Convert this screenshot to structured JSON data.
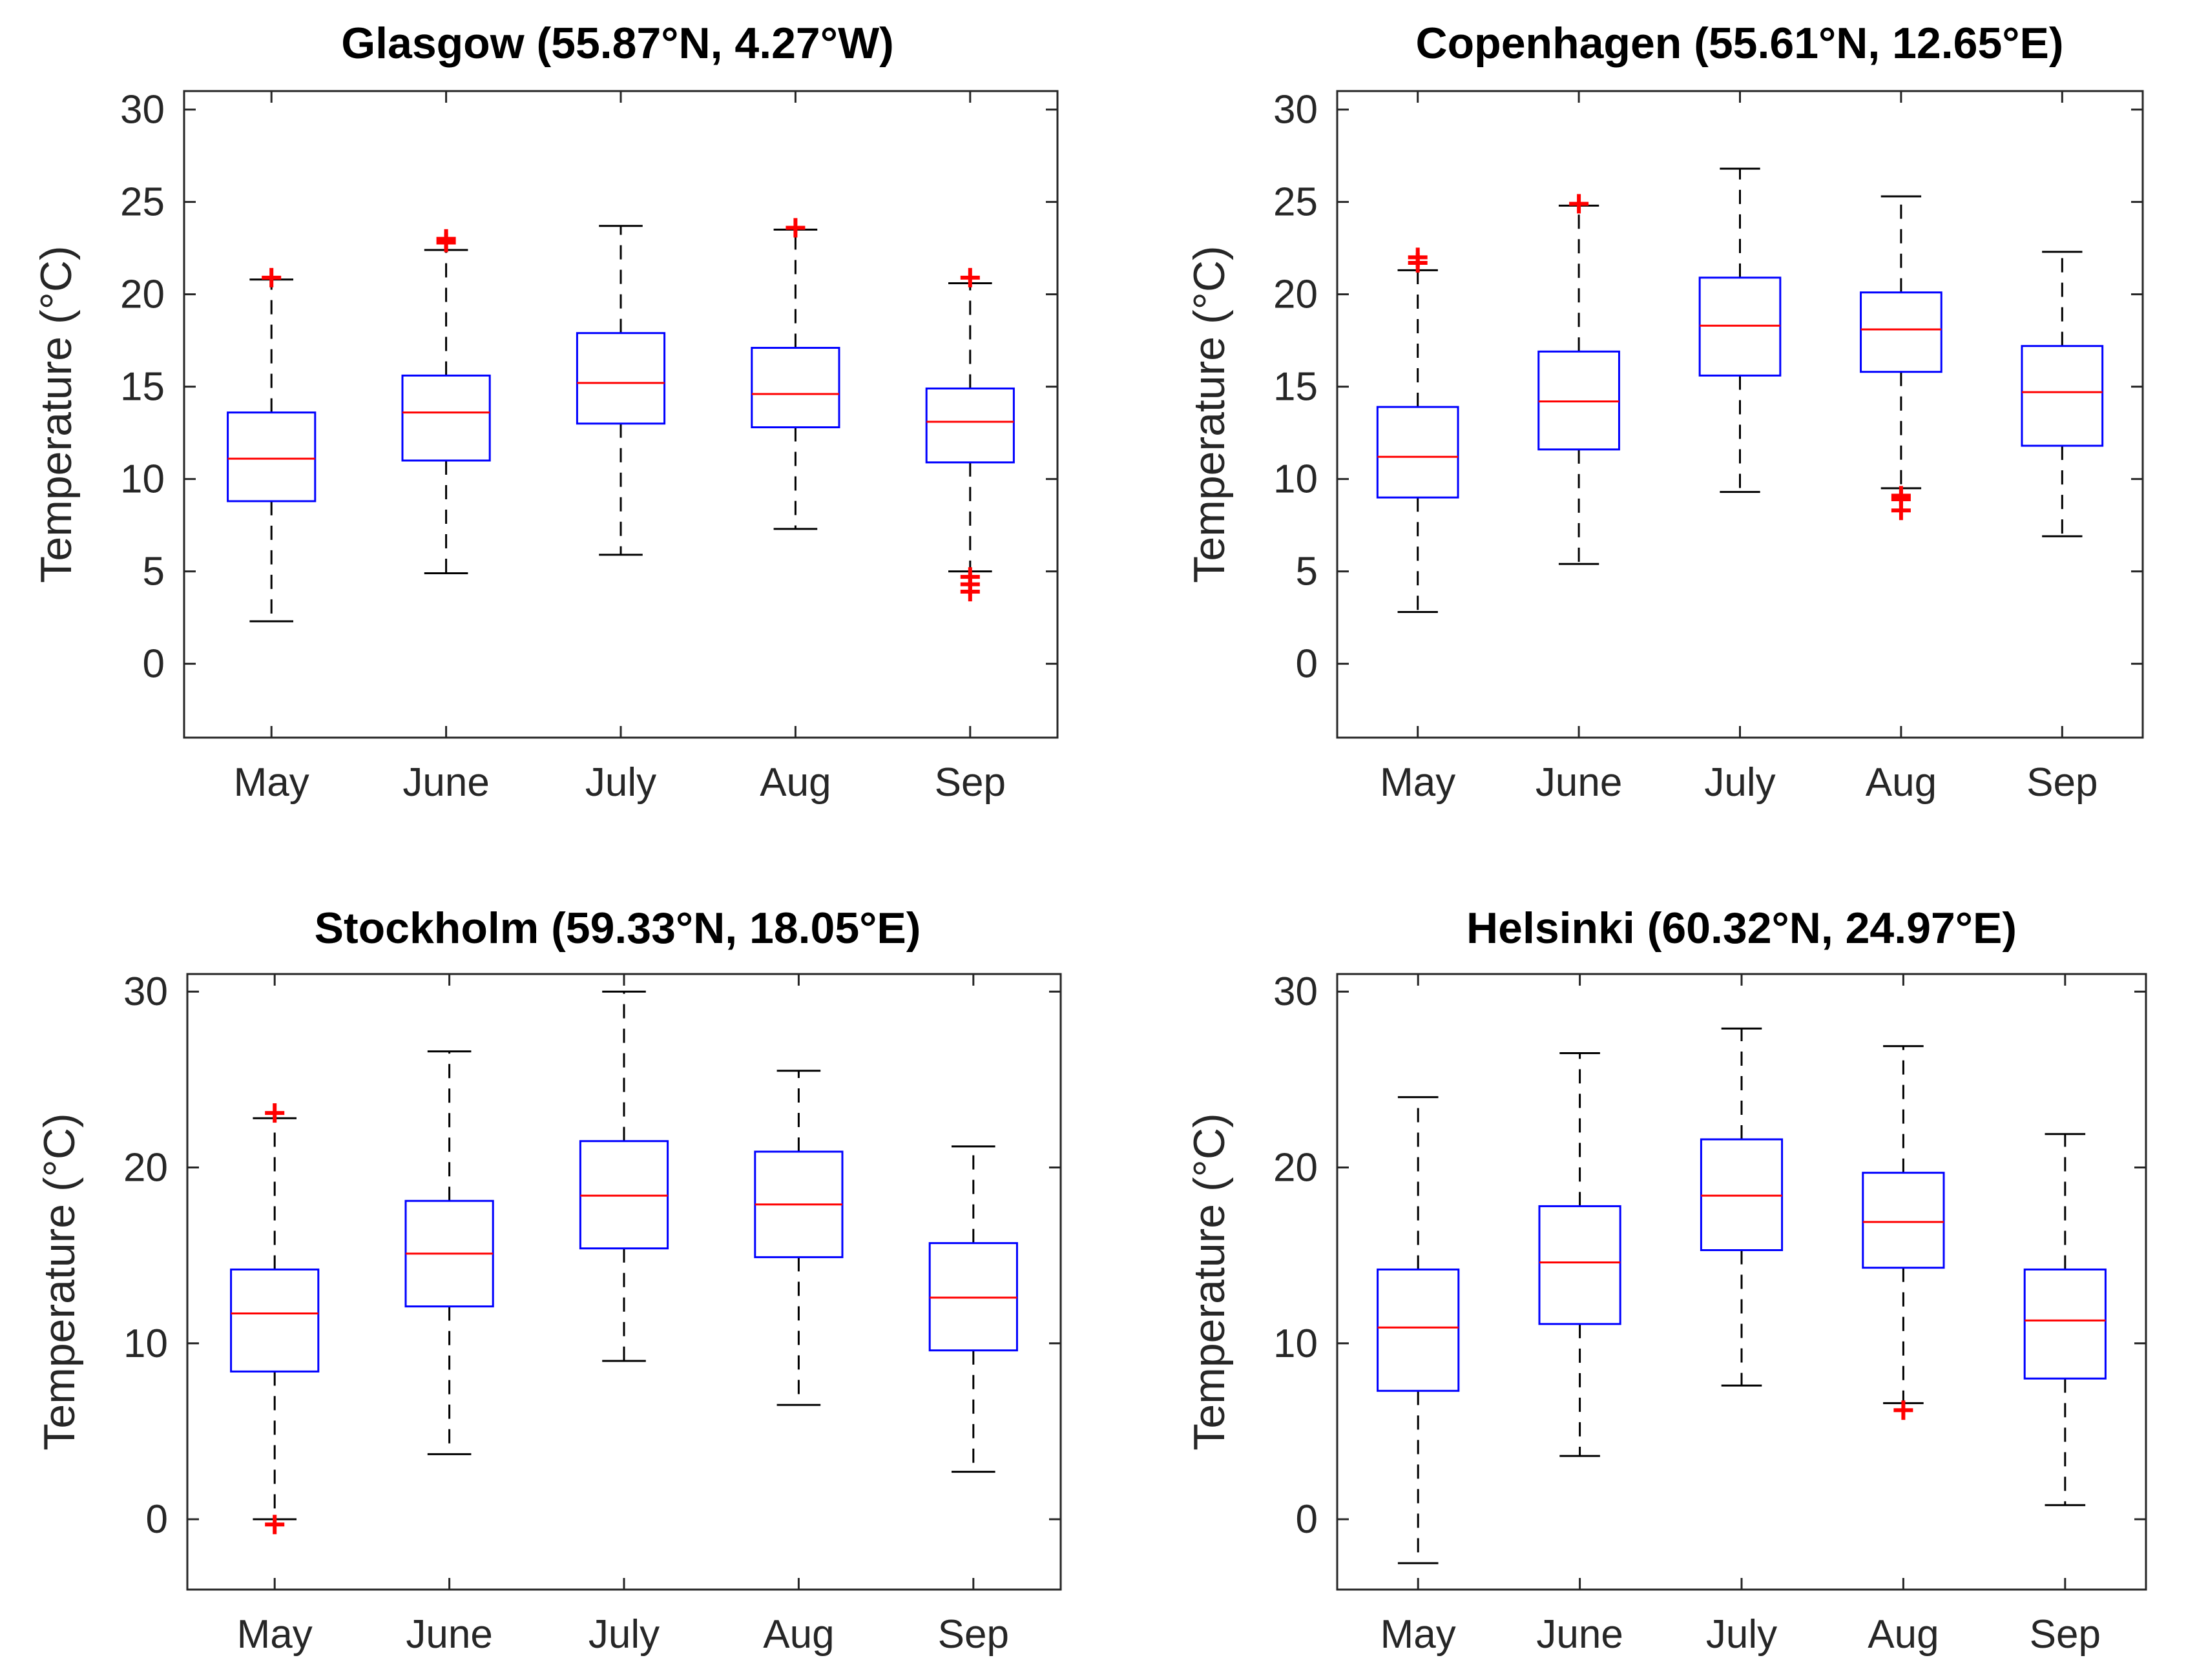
{
  "chart_data": [
    {
      "type": "box",
      "title": "Glasgow (55.87°N, 4.27°W)",
      "ylabel": "Temperature  (°C)",
      "xlabel": "",
      "categories": [
        "May",
        "June",
        "July",
        "Aug",
        "Sep"
      ],
      "ylim": [
        -4,
        31
      ],
      "yticks": [
        0,
        5,
        10,
        15,
        20,
        25,
        30
      ],
      "ytick_labels": [
        "0",
        "5",
        "10",
        "15",
        "20",
        "25",
        "30"
      ],
      "boxes": [
        {
          "low": 2.3,
          "q1": 8.8,
          "median": 11.1,
          "q3": 13.6,
          "high": 20.8,
          "outliers": [
            20.9
          ]
        },
        {
          "low": 4.9,
          "q1": 11.0,
          "median": 13.6,
          "q3": 15.6,
          "high": 22.4,
          "outliers": [
            22.8,
            23.0
          ]
        },
        {
          "low": 5.9,
          "q1": 13.0,
          "median": 15.2,
          "q3": 17.9,
          "high": 23.7,
          "outliers": []
        },
        {
          "low": 7.3,
          "q1": 12.8,
          "median": 14.6,
          "q3": 17.1,
          "high": 23.5,
          "outliers": [
            23.6
          ]
        },
        {
          "low": 5.0,
          "q1": 10.9,
          "median": 13.1,
          "q3": 14.9,
          "high": 20.6,
          "outliers": [
            20.9,
            4.7,
            4.3,
            3.9
          ]
        }
      ]
    },
    {
      "type": "box",
      "title": "Copenhagen (55.61°N, 12.65°E)",
      "ylabel": "Temperature  (°C)",
      "xlabel": "",
      "categories": [
        "May",
        "June",
        "July",
        "Aug",
        "Sep"
      ],
      "ylim": [
        -4,
        31
      ],
      "yticks": [
        0,
        5,
        10,
        15,
        20,
        25,
        30
      ],
      "ytick_labels": [
        "0",
        "5",
        "10",
        "15",
        "20",
        "25",
        "30"
      ],
      "boxes": [
        {
          "low": 2.8,
          "q1": 9.0,
          "median": 11.2,
          "q3": 13.9,
          "high": 21.3,
          "outliers": [
            21.7,
            22.0
          ]
        },
        {
          "low": 5.4,
          "q1": 11.6,
          "median": 14.2,
          "q3": 16.9,
          "high": 24.8,
          "outliers": [
            24.9
          ]
        },
        {
          "low": 9.3,
          "q1": 15.6,
          "median": 18.3,
          "q3": 20.9,
          "high": 26.8,
          "outliers": []
        },
        {
          "low": 9.5,
          "q1": 15.8,
          "median": 18.1,
          "q3": 20.1,
          "high": 25.3,
          "outliers": [
            9.1,
            8.9,
            8.3
          ]
        },
        {
          "low": 6.9,
          "q1": 11.8,
          "median": 14.7,
          "q3": 17.2,
          "high": 22.3,
          "outliers": []
        }
      ]
    },
    {
      "type": "box",
      "title": "Stockholm (59.33°N, 18.05°E)",
      "ylabel": "Temperature  (°C)",
      "xlabel": "",
      "categories": [
        "May",
        "June",
        "July",
        "Aug",
        "Sep"
      ],
      "ylim": [
        -4,
        31
      ],
      "yticks": [
        0,
        10,
        20,
        30
      ],
      "ytick_labels": [
        "0",
        "10",
        "20",
        "30"
      ],
      "boxes": [
        {
          "low": 0.0,
          "q1": 8.4,
          "median": 11.7,
          "q3": 14.2,
          "high": 22.8,
          "outliers": [
            23.1,
            -0.3
          ]
        },
        {
          "low": 3.7,
          "q1": 12.1,
          "median": 15.1,
          "q3": 18.1,
          "high": 26.6,
          "outliers": []
        },
        {
          "low": 9.0,
          "q1": 15.4,
          "median": 18.4,
          "q3": 21.5,
          "high": 30.0,
          "outliers": []
        },
        {
          "low": 6.5,
          "q1": 14.9,
          "median": 17.9,
          "q3": 20.9,
          "high": 25.5,
          "outliers": []
        },
        {
          "low": 2.7,
          "q1": 9.6,
          "median": 12.6,
          "q3": 15.7,
          "high": 21.2,
          "outliers": []
        }
      ]
    },
    {
      "type": "box",
      "title": "Helsinki (60.32°N, 24.97°E)",
      "ylabel": "Temperature  (°C)",
      "xlabel": "",
      "categories": [
        "May",
        "June",
        "July",
        "Aug",
        "Sep"
      ],
      "ylim": [
        -4,
        31
      ],
      "yticks": [
        0,
        10,
        20,
        30
      ],
      "ytick_labels": [
        "0",
        "10",
        "20",
        "30"
      ],
      "boxes": [
        {
          "low": -2.5,
          "q1": 7.3,
          "median": 10.9,
          "q3": 14.2,
          "high": 24.0,
          "outliers": []
        },
        {
          "low": 3.6,
          "q1": 11.1,
          "median": 14.6,
          "q3": 17.8,
          "high": 26.5,
          "outliers": []
        },
        {
          "low": 7.6,
          "q1": 15.3,
          "median": 18.4,
          "q3": 21.6,
          "high": 27.9,
          "outliers": []
        },
        {
          "low": 6.6,
          "q1": 14.3,
          "median": 16.9,
          "q3": 19.7,
          "high": 26.9,
          "outliers": [
            6.2
          ]
        },
        {
          "low": 0.8,
          "q1": 8.0,
          "median": 11.3,
          "q3": 14.2,
          "high": 21.9,
          "outliers": []
        }
      ]
    }
  ],
  "colors": {
    "box": "#0000ff",
    "median": "#ff0000",
    "whisker": "#000000",
    "outlier": "#ff0000",
    "axis": "#262626"
  }
}
